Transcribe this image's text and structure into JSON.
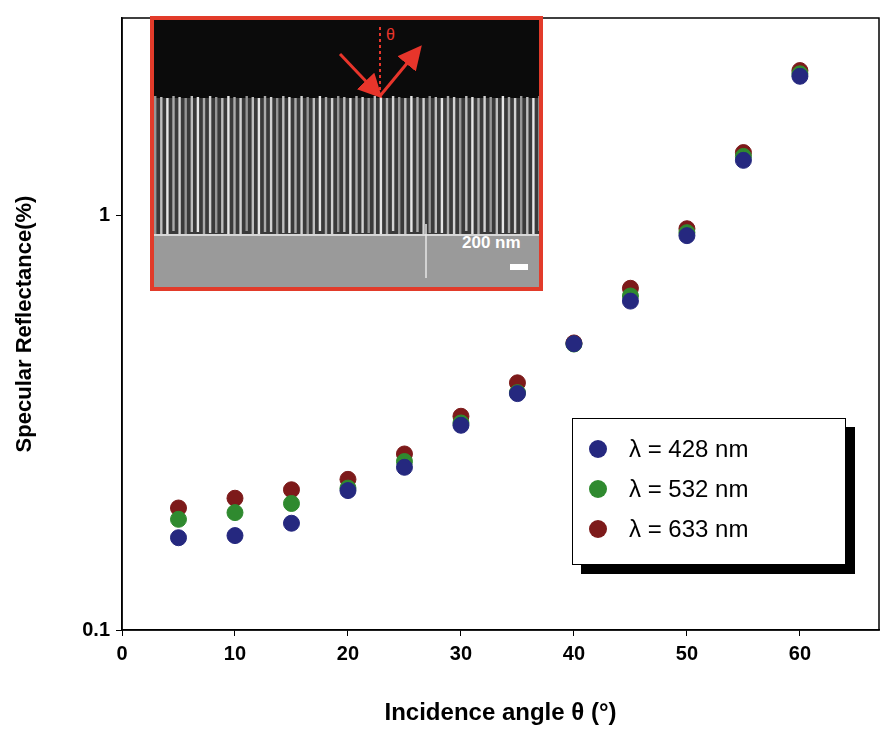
{
  "chart_data": {
    "type": "scatter",
    "x_label": "Incidence angle θ (°)",
    "y_label": "Specular Reflectance(%)",
    "x": [
      5,
      10,
      15,
      20,
      25,
      30,
      35,
      40,
      45,
      50,
      55,
      60
    ],
    "series": [
      {
        "name": "λ = 428 nm",
        "color": "#25287f",
        "values": [
          0.167,
          0.169,
          0.181,
          0.217,
          0.247,
          0.312,
          0.372,
          0.491,
          0.622,
          0.895,
          1.36,
          2.17
        ]
      },
      {
        "name": "λ = 532 nm",
        "color": "#2f8a2f",
        "values": [
          0.185,
          0.192,
          0.202,
          0.22,
          0.255,
          0.316,
          0.374,
          0.49,
          0.64,
          0.91,
          1.39,
          2.2
        ]
      },
      {
        "name": "λ = 633 nm",
        "color": "#7d1a1a",
        "values": [
          0.197,
          0.208,
          0.218,
          0.231,
          0.266,
          0.328,
          0.395,
          0.493,
          0.668,
          0.93,
          1.42,
          2.24
        ]
      }
    ],
    "xlim": [
      0,
      67
    ],
    "xticks": [
      0,
      10,
      20,
      30,
      40,
      50,
      60
    ],
    "ylim": [
      0.1,
      3
    ],
    "yticks": [
      0.1,
      1
    ],
    "log": "y",
    "grid": false,
    "legend": "lower right",
    "marker": "circle",
    "annotations": [
      "θ",
      "200 nm"
    ]
  }
}
